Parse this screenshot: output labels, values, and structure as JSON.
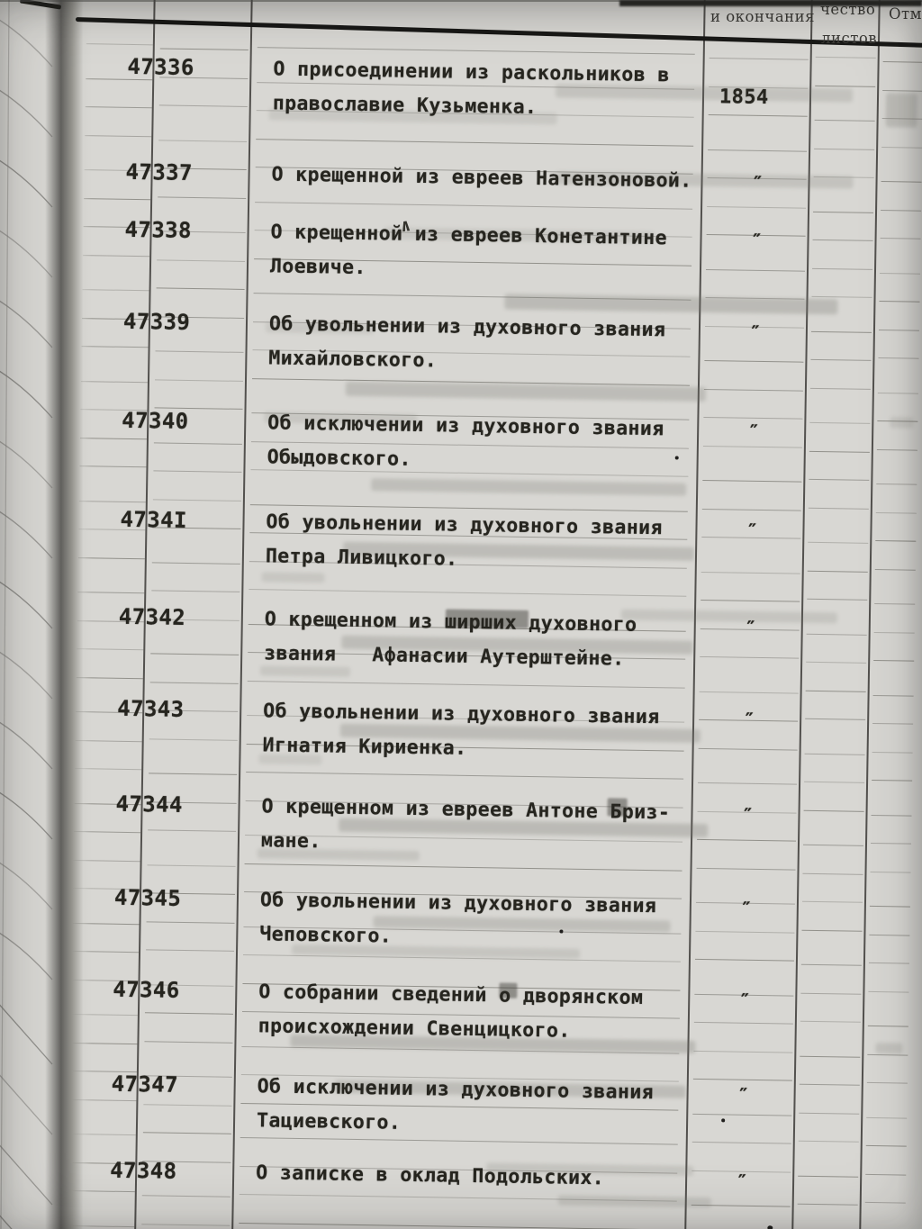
{
  "header": {
    "col_endings": "и окончания",
    "col_sheets_line1": "чество",
    "col_sheets_line2": "листов",
    "col_marks": "Отм"
  },
  "table": {
    "rows": [
      {
        "number": "47336",
        "line1": "О присоединении из раскольников в",
        "line2": "православие Кузьменка.",
        "year": "1854"
      },
      {
        "number": "47337",
        "line1": "О крещенной из евреев Натензоновой.",
        "line2": "",
        "year": "″"
      },
      {
        "number": "47338",
        "line1": "О крещенной из евреев Конетантине",
        "line2": "Лоевиче.",
        "year": "″",
        "annotation": "∧"
      },
      {
        "number": "47339",
        "line1": "Об увольнении из духовного звания",
        "line2": "Михайловского.",
        "year": "″"
      },
      {
        "number": "47340",
        "line1": "Об исключении из духовного звания",
        "line2": "Обыдовского.",
        "year": "″"
      },
      {
        "number": "4734I",
        "line1": "Об увольнении из духовного звания",
        "line2": "Петра Ливицкого.",
        "year": "″"
      },
      {
        "number": "47342",
        "line1": "О крещенном из ширших духовного",
        "line2": "звания   Афанасии Аутерштейне.",
        "year": "″"
      },
      {
        "number": "47343",
        "line1": "Об увольнении из духовного звания",
        "line2": "Игнатия Кириенка.",
        "year": "″"
      },
      {
        "number": "47344",
        "line1": "О крещенном из евреев Антоне Бриз-",
        "line2": "мане.",
        "year": "″"
      },
      {
        "number": "47345",
        "line1": "Об увольнении из духовного звания",
        "line2": "Чеповского.",
        "year": "″"
      },
      {
        "number": "47346",
        "line1": "О собрании сведений о дворянском",
        "line2": "происхождении Свенцицкого.",
        "year": "″"
      },
      {
        "number": "47347",
        "line1": "Об исключении из духовного звания",
        "line2": "Тациевского.",
        "year": "″"
      },
      {
        "number": "47348",
        "line1": "О записке в оклад Подольских.",
        "line2": "",
        "year": "″"
      }
    ]
  }
}
